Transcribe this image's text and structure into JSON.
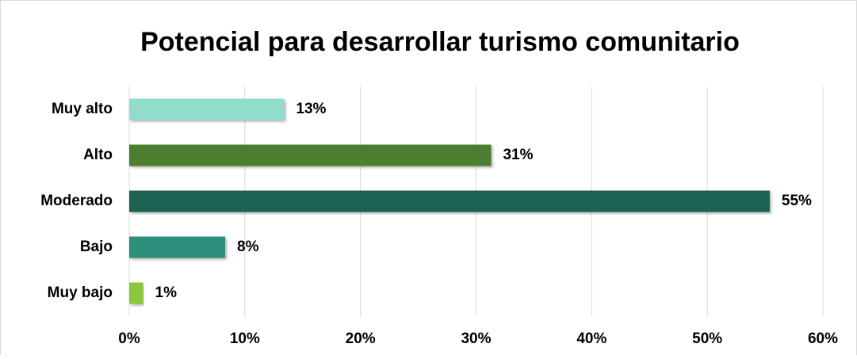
{
  "chart_data": {
    "type": "barh",
    "title": "Potencial para desarrollar turismo comunitario",
    "categories": [
      "Muy alto",
      "Alto",
      "Moderado",
      "Bajo",
      "Muy bajo"
    ],
    "values": [
      13.4,
      31.3,
      55.4,
      8.3,
      1.2
    ],
    "value_labels": [
      "13%",
      "31%",
      "55%",
      "8%",
      "1%"
    ],
    "colors": [
      "#92dccb",
      "#4e7d2e",
      "#1f6253",
      "#2e8f7b",
      "#8cc63e"
    ],
    "xlim": [
      0,
      60
    ],
    "xticks": [
      {
        "value": 0,
        "label": "0%"
      },
      {
        "value": 10,
        "label": "10%"
      },
      {
        "value": 20,
        "label": "20%"
      },
      {
        "value": 30,
        "label": "30%"
      },
      {
        "value": 40,
        "label": "40%"
      },
      {
        "value": 50,
        "label": "50%"
      },
      {
        "value": 60,
        "label": "60%"
      }
    ],
    "grid": true
  }
}
